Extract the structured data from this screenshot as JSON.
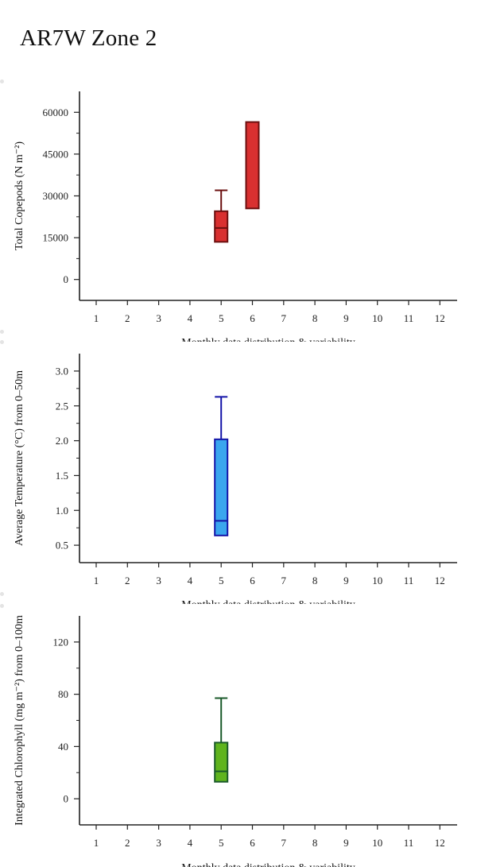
{
  "page": {
    "title": "AR7W Zone 2"
  },
  "chart_data": [
    {
      "type": "box",
      "ylabel": "Total Copepods (N m⁻²)",
      "xlabel": "Monthly data distribution & variability",
      "categories": [
        "1",
        "2",
        "3",
        "4",
        "5",
        "6",
        "7",
        "8",
        "9",
        "10",
        "11",
        "12"
      ],
      "ylim": [
        -7500,
        67500
      ],
      "yticks": [
        0,
        15000,
        30000,
        45000,
        60000
      ],
      "ytick_labels": [
        "0",
        "15000",
        "30000",
        "45000",
        "60000"
      ],
      "minor_yticks": [
        7500,
        22500,
        37500,
        52500
      ],
      "colors": {
        "fill": "#d93030",
        "stroke": "#6b1010"
      },
      "boxes": [
        {
          "month": "5",
          "q1": 13500,
          "median": 18500,
          "q3": 24500,
          "whisker_high": 32000
        },
        {
          "month": "6",
          "q1": 25500,
          "median": null,
          "q3": 56500,
          "whisker_high": null
        }
      ]
    },
    {
      "type": "box",
      "ylabel": "Average Temperature (°C) from 0–50m",
      "xlabel": "Monthly data distribution & variability",
      "categories": [
        "1",
        "2",
        "3",
        "4",
        "5",
        "6",
        "7",
        "8",
        "9",
        "10",
        "11",
        "12"
      ],
      "ylim": [
        0.25,
        3.25
      ],
      "yticks": [
        0.5,
        1.0,
        1.5,
        2.0,
        2.5,
        3.0
      ],
      "ytick_labels": [
        "0.5",
        "1.0",
        "1.5",
        "2.0",
        "2.5",
        "3.0"
      ],
      "minor_yticks": [
        0.75,
        1.25,
        1.75,
        2.25,
        2.75
      ],
      "colors": {
        "fill": "#3aa6ee",
        "stroke": "#1414a8"
      },
      "boxes": [
        {
          "month": "5",
          "q1": 0.64,
          "median": 0.85,
          "q3": 2.02,
          "whisker_high": 2.63
        }
      ]
    },
    {
      "type": "box",
      "ylabel": "Integrated Chlorophyll (mg m⁻²) from 0–100m",
      "xlabel": "Monthly data distribution & variability",
      "categories": [
        "1",
        "2",
        "3",
        "4",
        "5",
        "6",
        "7",
        "8",
        "9",
        "10",
        "11",
        "12"
      ],
      "ylim": [
        -20,
        140
      ],
      "yticks": [
        0,
        40,
        80,
        120
      ],
      "ytick_labels": [
        "0",
        "40",
        "80",
        "120"
      ],
      "minor_yticks": [
        20,
        60,
        100
      ],
      "colors": {
        "fill": "#5fb41e",
        "stroke": "#1a5a2a"
      },
      "boxes": [
        {
          "month": "5",
          "q1": 13,
          "median": 21,
          "q3": 43,
          "whisker_high": 77
        }
      ]
    }
  ]
}
